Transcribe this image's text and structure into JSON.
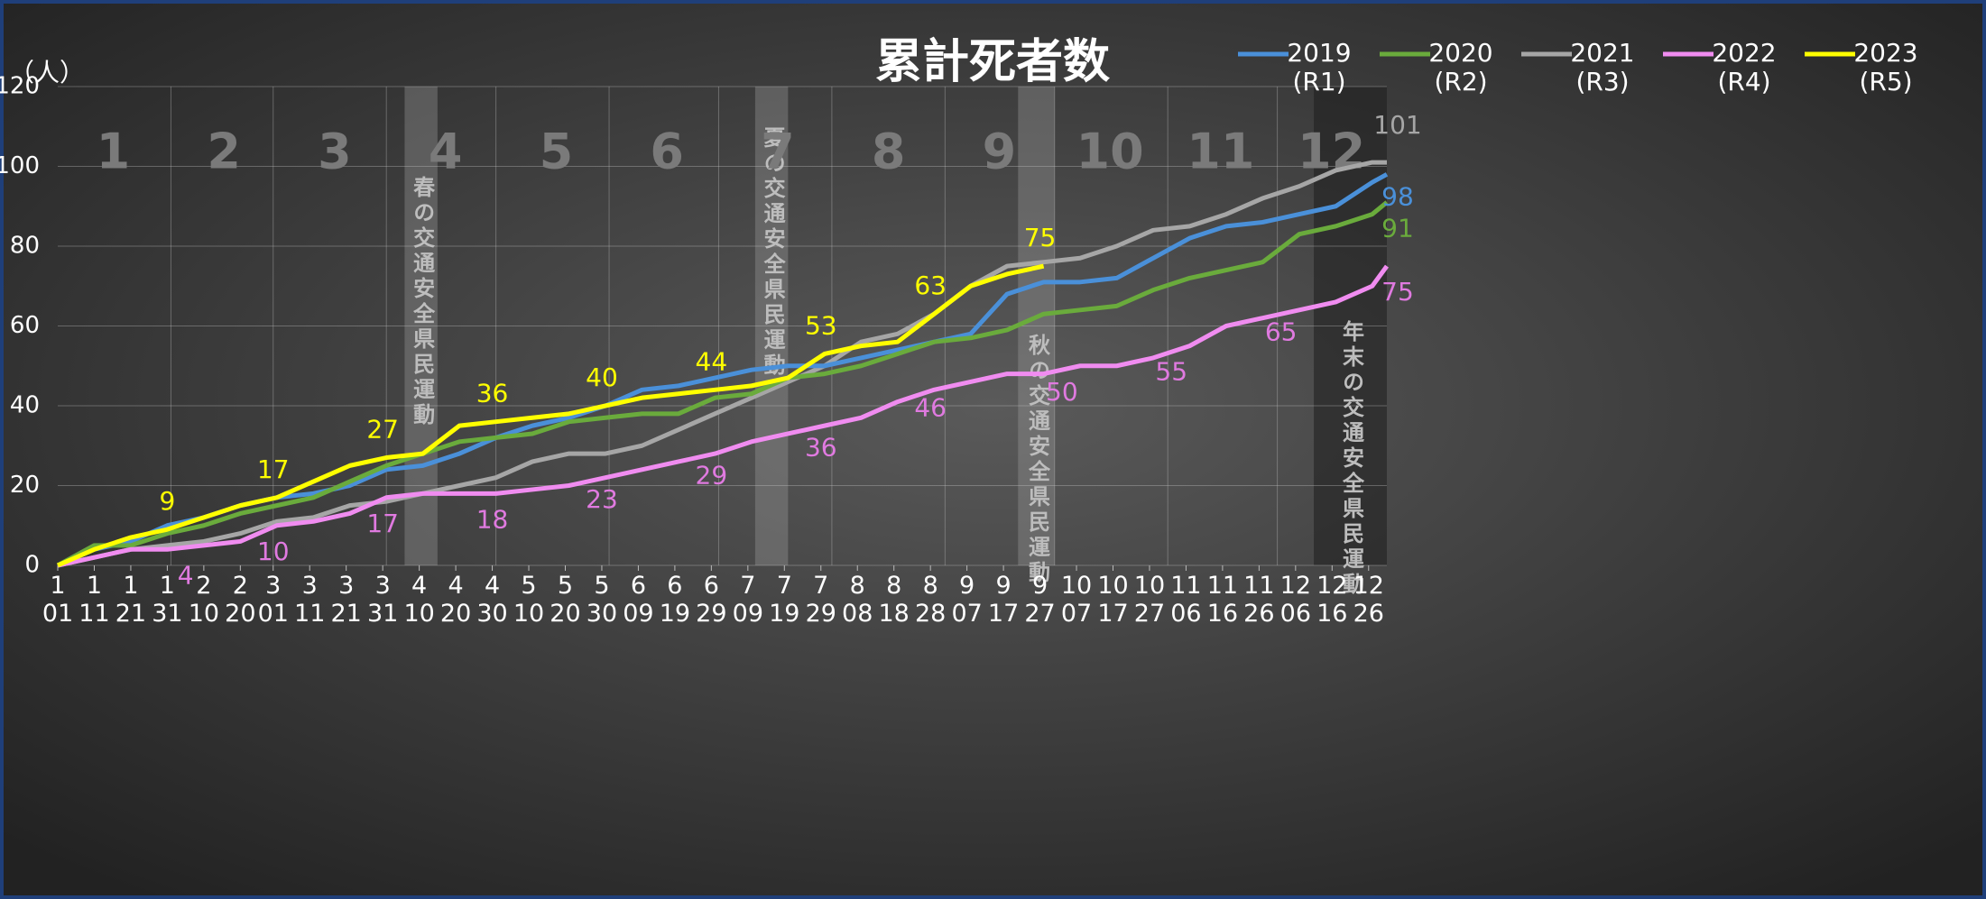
{
  "chart_data": {
    "type": "line",
    "title": "累計死者数",
    "ylabel": "（人）",
    "ylim": [
      0,
      120
    ],
    "yticks": [
      0,
      20,
      40,
      60,
      80,
      100,
      120
    ],
    "xlim": [
      1,
      365
    ],
    "xticks": [
      {
        "value": 1,
        "label": "1\n01"
      },
      {
        "value": 11,
        "label": "1\n11"
      },
      {
        "value": 21,
        "label": "1\n21"
      },
      {
        "value": 31,
        "label": "1\n31"
      },
      {
        "value": 41,
        "label": "2\n10"
      },
      {
        "value": 51,
        "label": "2\n20"
      },
      {
        "value": 60,
        "label": "3\n01"
      },
      {
        "value": 70,
        "label": "3\n11"
      },
      {
        "value": 80,
        "label": "3\n21"
      },
      {
        "value": 90,
        "label": "3\n31"
      },
      {
        "value": 100,
        "label": "4\n10"
      },
      {
        "value": 110,
        "label": "4\n20"
      },
      {
        "value": 120,
        "label": "4\n30"
      },
      {
        "value": 130,
        "label": "5\n10"
      },
      {
        "value": 140,
        "label": "5\n20"
      },
      {
        "value": 150,
        "label": "5\n30"
      },
      {
        "value": 160,
        "label": "6\n09"
      },
      {
        "value": 170,
        "label": "6\n19"
      },
      {
        "value": 180,
        "label": "6\n29"
      },
      {
        "value": 190,
        "label": "7\n09"
      },
      {
        "value": 200,
        "label": "7\n19"
      },
      {
        "value": 210,
        "label": "7\n29"
      },
      {
        "value": 220,
        "label": "8\n08"
      },
      {
        "value": 230,
        "label": "8\n18"
      },
      {
        "value": 240,
        "label": "8\n28"
      },
      {
        "value": 250,
        "label": "9\n07"
      },
      {
        "value": 260,
        "label": "9\n17"
      },
      {
        "value": 270,
        "label": "9\n27"
      },
      {
        "value": 280,
        "label": "10\n07"
      },
      {
        "value": 290,
        "label": "10\n17"
      },
      {
        "value": 300,
        "label": "10\n27"
      },
      {
        "value": 310,
        "label": "11\n06"
      },
      {
        "value": 320,
        "label": "11\n16"
      },
      {
        "value": 330,
        "label": "11\n26"
      },
      {
        "value": 340,
        "label": "12\n06"
      },
      {
        "value": 350,
        "label": "12\n16"
      },
      {
        "value": 360,
        "label": "12\n26"
      }
    ],
    "months": [
      "1",
      "2",
      "3",
      "4",
      "5",
      "6",
      "7",
      "8",
      "9",
      "10",
      "11",
      "12"
    ],
    "month_grid": [
      32,
      60,
      91,
      121,
      152,
      182,
      213,
      244,
      274,
      305,
      335
    ],
    "grid": true,
    "campaigns": [
      {
        "label": "春の交通安全県民運動",
        "start": 96,
        "end": 105
      },
      {
        "label": "夏の交通安全県民運動",
        "start": 192,
        "end": 201
      },
      {
        "label": "秋の交通安全県民運動",
        "start": 264,
        "end": 274
      },
      {
        "label": "年末の交通安全県民運動",
        "start": 345,
        "end": 365
      }
    ],
    "x": [
      1,
      11,
      21,
      31,
      41,
      51,
      61,
      71,
      81,
      91,
      101,
      111,
      121,
      131,
      141,
      151,
      161,
      171,
      181,
      191,
      201,
      211,
      221,
      231,
      241,
      251,
      261,
      271,
      281,
      291,
      301,
      311,
      321,
      331,
      341,
      351,
      361,
      365
    ],
    "series": [
      {
        "name": "2019\n(R1)",
        "color": "#4a90d9",
        "values": [
          0,
          4,
          6,
          10,
          12,
          15,
          17,
          18,
          20,
          24,
          25,
          28,
          32,
          35,
          37,
          40,
          44,
          45,
          47,
          49,
          50,
          50,
          52,
          54,
          56,
          58,
          68,
          71,
          71,
          72,
          77,
          82,
          85,
          86,
          88,
          90,
          96,
          98
        ],
        "labels": [
          {
            "x": 365,
            "value": 98
          }
        ]
      },
      {
        "name": "2020\n(R2)",
        "color": "#6aab3c",
        "values": [
          0,
          5,
          5,
          8,
          10,
          13,
          15,
          17,
          21,
          25,
          28,
          31,
          32,
          33,
          36,
          37,
          38,
          38,
          42,
          43,
          47,
          48,
          50,
          53,
          56,
          57,
          59,
          63,
          64,
          65,
          69,
          72,
          74,
          76,
          83,
          85,
          88,
          91
        ],
        "labels": [
          {
            "x": 365,
            "value": 91
          }
        ]
      },
      {
        "name": "2021\n(R3)",
        "color": "#a6a6a6",
        "values": [
          0,
          2,
          4,
          5,
          6,
          8,
          11,
          12,
          15,
          16,
          18,
          20,
          22,
          26,
          28,
          28,
          30,
          34,
          38,
          42,
          46,
          50,
          56,
          58,
          63,
          70,
          75,
          76,
          77,
          80,
          84,
          85,
          88,
          92,
          95,
          99,
          101,
          101
        ],
        "labels": [
          {
            "x": 365,
            "value": 101
          }
        ]
      },
      {
        "name": "2022\n(R4)",
        "color": "#f08cf0",
        "values": [
          0,
          2,
          4,
          4,
          5,
          6,
          10,
          11,
          13,
          17,
          18,
          18,
          18,
          19,
          20,
          22,
          24,
          26,
          28,
          31,
          33,
          35,
          37,
          41,
          44,
          46,
          48,
          48,
          50,
          50,
          52,
          55,
          60,
          62,
          64,
          66,
          70,
          75
        ],
        "labels": [
          {
            "x": 36,
            "value": 4
          },
          {
            "x": 60,
            "value": 10
          },
          {
            "x": 90,
            "value": 17
          },
          {
            "x": 120,
            "value": 18
          },
          {
            "x": 150,
            "value": 23
          },
          {
            "x": 180,
            "value": 29
          },
          {
            "x": 210,
            "value": 36
          },
          {
            "x": 240,
            "value": 46
          },
          {
            "x": 276,
            "value": 50
          },
          {
            "x": 306,
            "value": 55
          },
          {
            "x": 336,
            "value": 65
          },
          {
            "x": 365,
            "value": 75
          }
        ]
      },
      {
        "name": "2023\n(R5)",
        "color": "#ffff00",
        "values": [
          0,
          4,
          7,
          9,
          12,
          15,
          17,
          21,
          25,
          27,
          28,
          35,
          36,
          37,
          38,
          40,
          42,
          43,
          44,
          45,
          47,
          53,
          55,
          56,
          63,
          70,
          73,
          75,
          null,
          null,
          null,
          null,
          null,
          null,
          null,
          null,
          null,
          null
        ],
        "labels": [
          {
            "x": 31,
            "value": 9
          },
          {
            "x": 60,
            "value": 17
          },
          {
            "x": 90,
            "value": 27
          },
          {
            "x": 120,
            "value": 36
          },
          {
            "x": 150,
            "value": 40
          },
          {
            "x": 180,
            "value": 44
          },
          {
            "x": 210,
            "value": 53
          },
          {
            "x": 240,
            "value": 63
          },
          {
            "x": 270,
            "value": 75
          }
        ]
      }
    ]
  }
}
